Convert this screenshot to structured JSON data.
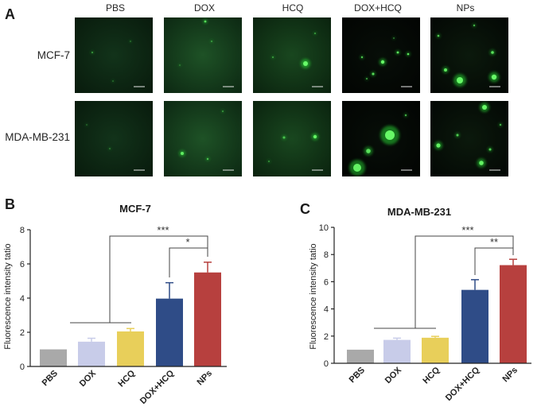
{
  "panels": {
    "a": {
      "label": "A",
      "columns": [
        "PBS",
        "DOX",
        "HCQ",
        "DOX+HCQ",
        "NPs"
      ],
      "rows": [
        "MCF-7",
        "MDA-MB-231"
      ]
    },
    "b": {
      "label": "B"
    },
    "c": {
      "label": "C"
    }
  },
  "chart_data": [
    {
      "type": "bar",
      "title": "MCF-7",
      "ylabel": "Fluorescence intensity tatio",
      "categories": [
        "PBS",
        "DOX",
        "HCQ",
        "DOX+HCQ",
        "NPs"
      ],
      "values": [
        1.0,
        1.45,
        2.05,
        3.97,
        5.5
      ],
      "error_upper": [
        0,
        0.2,
        0.17,
        0.93,
        0.6
      ],
      "colors": [
        "#a9a9a9",
        "#c8cce9",
        "#e8cf5a",
        "#2f4c87",
        "#b7403e"
      ],
      "ylim": [
        0,
        8
      ],
      "yticks": [
        0,
        2,
        4,
        6,
        8
      ],
      "grid": false,
      "significance": [
        {
          "label": "***",
          "groups": [
            0,
            1,
            2
          ],
          "vs": 4
        },
        {
          "label": "*",
          "groups": [
            3
          ],
          "vs": 4
        }
      ]
    },
    {
      "type": "bar",
      "title": "MDA-MB-231",
      "ylabel": "Fluorescence intensity tatio",
      "categories": [
        "PBS",
        "DOX",
        "HCQ",
        "DOX+HCQ",
        "NPs"
      ],
      "values": [
        1.0,
        1.72,
        1.88,
        5.4,
        7.22
      ],
      "error_upper": [
        0,
        0.13,
        0.1,
        0.75,
        0.43
      ],
      "colors": [
        "#a9a9a9",
        "#c8cce9",
        "#e8cf5a",
        "#2f4c87",
        "#b7403e"
      ],
      "ylim": [
        0,
        10
      ],
      "yticks": [
        0,
        2,
        4,
        6,
        8,
        10
      ],
      "grid": false,
      "significance": [
        {
          "label": "***",
          "groups": [
            0,
            1,
            2
          ],
          "vs": 4
        },
        {
          "label": "**",
          "groups": [
            3
          ],
          "vs": 4
        }
      ]
    }
  ]
}
